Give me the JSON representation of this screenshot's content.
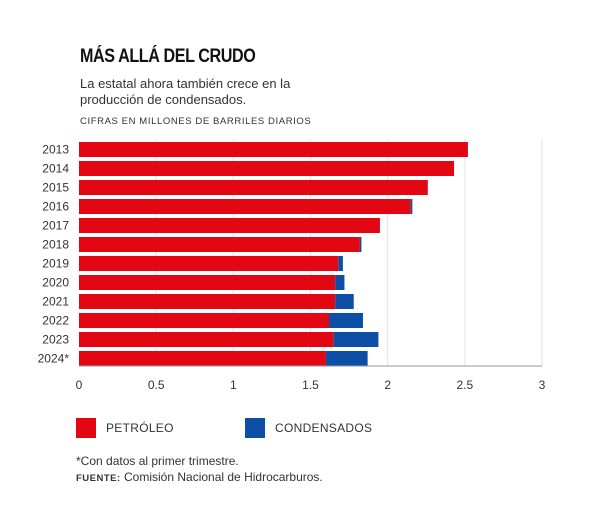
{
  "chart_data": {
    "type": "bar",
    "orientation": "horizontal",
    "stacked": true,
    "title": "MÁS ALLÁ DEL CRUDO",
    "subtitle": "La estatal ahora también crece en la producción de condensados.",
    "units": "CIFRAS EN MILLONES DE BARRILES DIARIOS",
    "categories": [
      "2013",
      "2014",
      "2015",
      "2016",
      "2017",
      "2018",
      "2019",
      "2020",
      "2021",
      "2022",
      "2023",
      "2024*"
    ],
    "series": [
      {
        "name": "PETRÓLEO",
        "color": "#e30613",
        "values": [
          2.52,
          2.43,
          2.26,
          2.15,
          1.95,
          1.82,
          1.68,
          1.66,
          1.66,
          1.62,
          1.65,
          1.6
        ]
      },
      {
        "name": "CONDENSADOS",
        "color": "#0d4ea6",
        "values": [
          0,
          0,
          0,
          0.01,
          0,
          0.01,
          0.03,
          0.06,
          0.12,
          0.22,
          0.29,
          0.27
        ]
      }
    ],
    "xlim": [
      0,
      3
    ],
    "xticks": [
      "0",
      "0.5",
      "1",
      "1.5",
      "2",
      "2.5",
      "3"
    ],
    "grid": true,
    "legend_position": "bottom"
  },
  "note": "*Con datos al primer trimestre.",
  "source_label": "FUENTE:",
  "source_text": " Comisión Nacional de Hidrocarburos."
}
